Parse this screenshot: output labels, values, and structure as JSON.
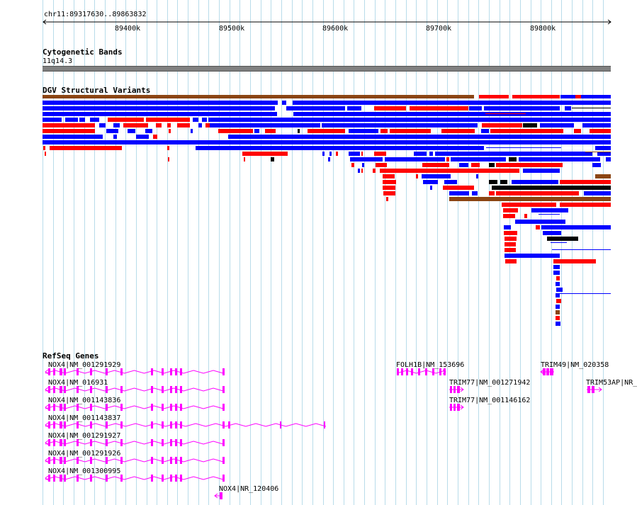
{
  "ruler": {
    "location": "chr11:89317630..89863832",
    "ticks": [
      "89400k",
      "89500k",
      "89600k",
      "89700k",
      "89800k"
    ]
  },
  "tracks": {
    "cytoband": {
      "title": "Cytogenetic Bands",
      "band_label": "11q14.3"
    },
    "dgv": {
      "title": "DGV Structural Variants"
    },
    "refseq": {
      "title": "RefSeq Genes"
    }
  },
  "colors": {
    "gain": "#0000ff",
    "loss": "#ff0000",
    "inversion": "#8b4513",
    "complex": "#000000",
    "gene": "#ff00ff",
    "grid": "#b8dcea",
    "band": "#808080"
  },
  "genes": [
    {
      "label": "NOX4|NM_001291929"
    },
    {
      "label": "NOX4|NM_016931"
    },
    {
      "label": "NOX4|NM_001143836"
    },
    {
      "label": "NOX4|NM_001143837"
    },
    {
      "label": "NOX4|NM_001291927"
    },
    {
      "label": "NOX4|NM_001291926"
    },
    {
      "label": "NOX4|NM_001300995"
    },
    {
      "label": "NOX4|NR_120406"
    },
    {
      "label": "FOLH1B|NM_153696"
    },
    {
      "label": "TRIM77|NM_001271942"
    },
    {
      "label": "TRIM77|NM_001146162"
    },
    {
      "label": "TRIM49|NM_020358"
    },
    {
      "label": "TRIM53AP|NR_"
    }
  ]
}
